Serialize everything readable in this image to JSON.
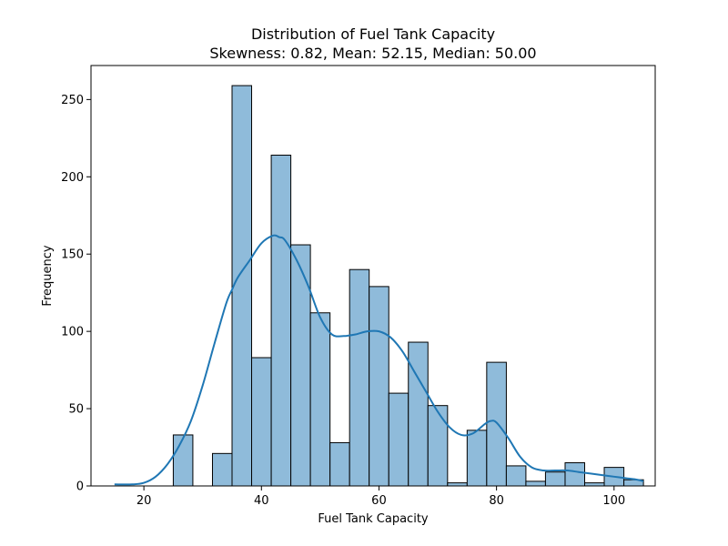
{
  "chart_data": {
    "type": "bar",
    "title": "Distribution of Fuel Tank Capacity",
    "subtitle": "Skewness: 0.82, Mean: 52.15, Median: 50.00",
    "xlabel": "Fuel Tank Capacity",
    "ylabel": "Frequency",
    "xlim": [
      11,
      107
    ],
    "ylim": [
      0,
      272
    ],
    "xticks": [
      20,
      40,
      60,
      80,
      100
    ],
    "yticks": [
      0,
      50,
      100,
      150,
      200,
      250
    ],
    "grid": false,
    "bar_color": "#8fbbda",
    "bar_edge_color": "#000000",
    "kde_color": "#1f77b4",
    "bins": [
      {
        "x0": 25.0,
        "x1": 28.33,
        "count": 33
      },
      {
        "x0": 28.33,
        "x1": 31.67,
        "count": 0
      },
      {
        "x0": 31.67,
        "x1": 35.0,
        "count": 21
      },
      {
        "x0": 35.0,
        "x1": 38.33,
        "count": 259
      },
      {
        "x0": 38.33,
        "x1": 41.67,
        "count": 83
      },
      {
        "x0": 41.67,
        "x1": 45.0,
        "count": 214
      },
      {
        "x0": 45.0,
        "x1": 48.33,
        "count": 156
      },
      {
        "x0": 48.33,
        "x1": 51.67,
        "count": 112
      },
      {
        "x0": 51.67,
        "x1": 55.0,
        "count": 28
      },
      {
        "x0": 55.0,
        "x1": 58.33,
        "count": 140
      },
      {
        "x0": 58.33,
        "x1": 61.67,
        "count": 129
      },
      {
        "x0": 61.67,
        "x1": 65.0,
        "count": 60
      },
      {
        "x0": 65.0,
        "x1": 68.33,
        "count": 93
      },
      {
        "x0": 68.33,
        "x1": 71.67,
        "count": 52
      },
      {
        "x0": 71.67,
        "x1": 75.0,
        "count": 2
      },
      {
        "x0": 75.0,
        "x1": 78.33,
        "count": 36
      },
      {
        "x0": 78.33,
        "x1": 81.67,
        "count": 80
      },
      {
        "x0": 81.67,
        "x1": 85.0,
        "count": 13
      },
      {
        "x0": 85.0,
        "x1": 88.33,
        "count": 3
      },
      {
        "x0": 88.33,
        "x1": 91.67,
        "count": 9
      },
      {
        "x0": 91.67,
        "x1": 95.0,
        "count": 15
      },
      {
        "x0": 95.0,
        "x1": 98.33,
        "count": 2
      },
      {
        "x0": 98.33,
        "x1": 101.67,
        "count": 12
      },
      {
        "x0": 101.67,
        "x1": 105.0,
        "count": 4
      }
    ],
    "kde": {
      "x": [
        15,
        18,
        20,
        22,
        24,
        26,
        28,
        30,
        32,
        34,
        35,
        36,
        38,
        40,
        42,
        43,
        44,
        46,
        48,
        50,
        52,
        54,
        56,
        58,
        60,
        62,
        64,
        66,
        68,
        70,
        72,
        74,
        76,
        78,
        79,
        80,
        82,
        84,
        86,
        88,
        90,
        92,
        94,
        96,
        98,
        100,
        102,
        104,
        105
      ],
      "y": [
        1,
        1,
        2,
        6,
        14,
        26,
        42,
        65,
        92,
        118,
        127,
        135,
        146,
        157,
        162,
        161,
        159,
        146,
        129,
        109,
        98,
        97,
        98,
        100,
        100,
        96,
        87,
        74,
        61,
        48,
        38,
        33,
        34,
        40,
        42,
        41,
        31,
        19,
        12,
        10,
        10,
        10,
        9,
        8,
        7,
        6,
        5,
        4,
        3
      ]
    }
  }
}
